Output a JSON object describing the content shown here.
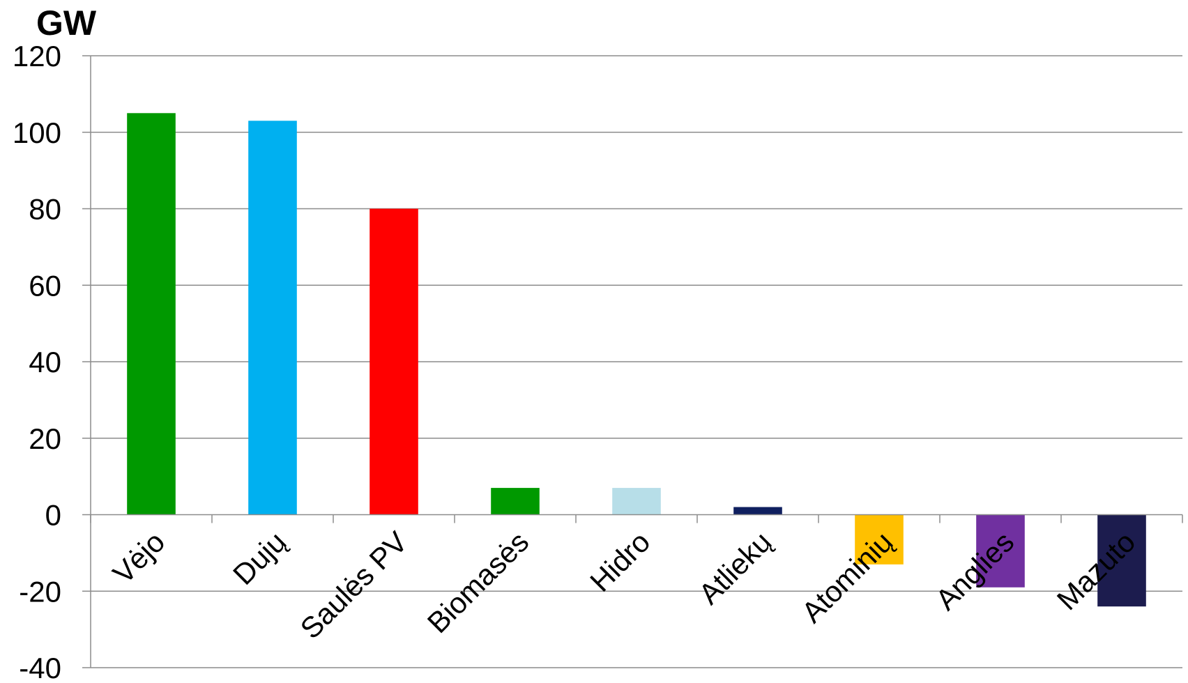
{
  "chart_data": {
    "type": "bar",
    "ylabel": "GW",
    "ylim": [
      -40,
      120
    ],
    "yticks": [
      120,
      100,
      80,
      60,
      40,
      20,
      0,
      -20,
      -40
    ],
    "grid": true,
    "categories": [
      "Vėjo",
      "Dujų",
      "Saulės PV",
      "Biomasės",
      "Hidro",
      "Atliekų",
      "Atominių",
      "Anglies",
      "Mazuto"
    ],
    "values": [
      105,
      103,
      80,
      7,
      7,
      2,
      -13,
      -19,
      -24
    ],
    "colors": [
      "#009900",
      "#00B0F0",
      "#FF0000",
      "#009900",
      "#B7DEE8",
      "#0F1F5F",
      "#FFC000",
      "#7030A0",
      "#1C1C4E"
    ]
  }
}
